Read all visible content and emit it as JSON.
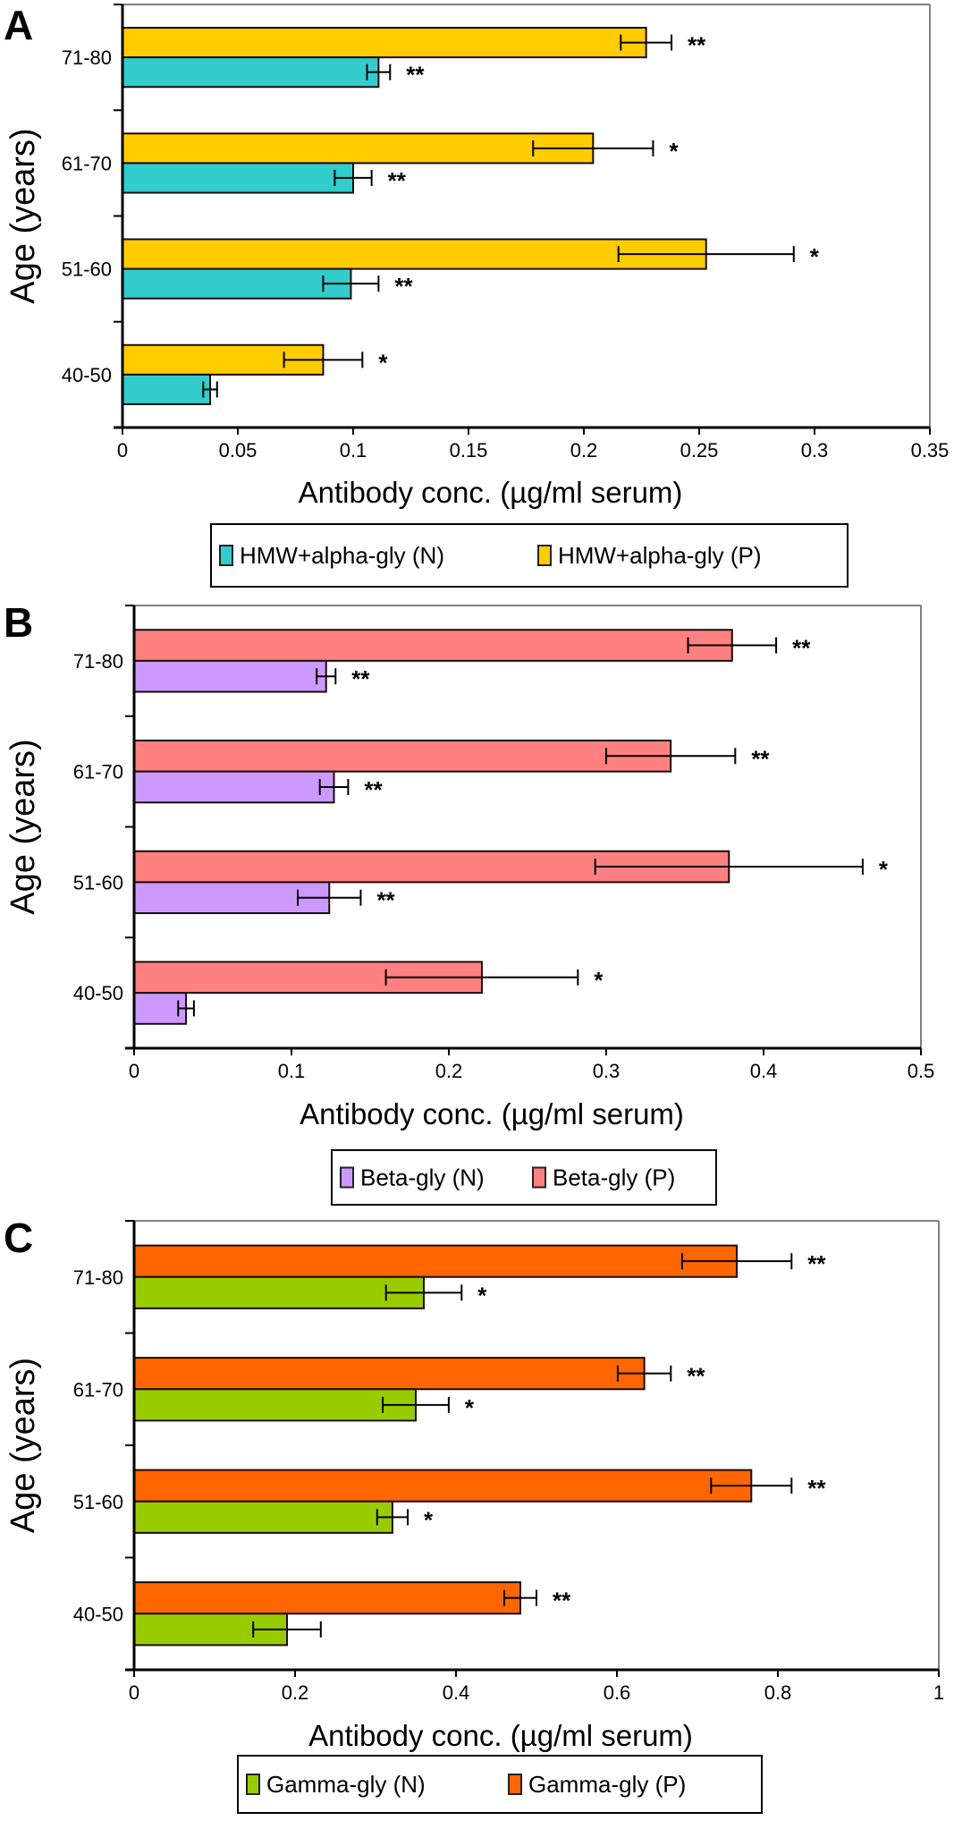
{
  "chart_data": [
    {
      "panel": "A",
      "type": "bar",
      "orientation": "horizontal",
      "xlabel": "Antibody conc. (µg/ml serum)",
      "ylabel": "Age (years)",
      "xlim": [
        0,
        0.35
      ],
      "xticks": [
        "0",
        "0.05",
        "0.1",
        "0.15",
        "0.2",
        "0.25",
        "0.3",
        "0.35"
      ],
      "xtick_values": [
        0,
        0.05,
        0.1,
        0.15,
        0.2,
        0.25,
        0.3,
        0.35
      ],
      "categories": [
        "71-80",
        "61-70",
        "51-60",
        "40-50"
      ],
      "grid": false,
      "legend_position": "bottom",
      "series": [
        {
          "name": "HMW+alpha-gly (P)",
          "color": "#FFCC00",
          "values": [
            0.227,
            0.204,
            0.253,
            0.087
          ],
          "errors": [
            0.011,
            0.026,
            0.038,
            0.017
          ],
          "significance": [
            "**",
            "*",
            "*",
            "*"
          ]
        },
        {
          "name": "HMW+alpha-gly (N)",
          "color": "#33CCCC",
          "values": [
            0.111,
            0.1,
            0.099,
            0.038
          ],
          "errors": [
            0.005,
            0.008,
            0.012,
            0.003
          ],
          "significance": [
            "**",
            "**",
            "**",
            ""
          ]
        }
      ],
      "legend": [
        "HMW+alpha-gly (N)",
        "HMW+alpha-gly (P)"
      ]
    },
    {
      "panel": "B",
      "type": "bar",
      "orientation": "horizontal",
      "xlabel": "Antibody conc. (µg/ml serum)",
      "ylabel": "Age (years)",
      "xlim": [
        0,
        0.5
      ],
      "xticks": [
        "0",
        "0.1",
        "0.2",
        "0.3",
        "0.4",
        "0.5"
      ],
      "xtick_values": [
        0,
        0.1,
        0.2,
        0.3,
        0.4,
        0.5
      ],
      "categories": [
        "71-80",
        "61-70",
        "51-60",
        "40-50"
      ],
      "grid": false,
      "legend_position": "bottom",
      "series": [
        {
          "name": "Beta-gly (P)",
          "color": "#FF8080",
          "values": [
            0.38,
            0.341,
            0.378,
            0.221
          ],
          "errors": [
            0.028,
            0.041,
            0.085,
            0.061
          ],
          "significance": [
            "**",
            "**",
            "*",
            "*"
          ]
        },
        {
          "name": "Beta-gly (N)",
          "color": "#CC99FF",
          "values": [
            0.122,
            0.127,
            0.124,
            0.033
          ],
          "errors": [
            0.006,
            0.009,
            0.02,
            0.005
          ],
          "significance": [
            "**",
            "**",
            "**",
            ""
          ]
        }
      ],
      "legend": [
        "Beta-gly (N)",
        "Beta-gly (P)"
      ]
    },
    {
      "panel": "C",
      "type": "bar",
      "orientation": "horizontal",
      "xlabel": "Antibody conc. (µg/ml serum)",
      "ylabel": "Age (years)",
      "xlim": [
        0,
        1
      ],
      "xticks": [
        "0",
        "0.2",
        "0.4",
        "0.6",
        "0.8",
        "1"
      ],
      "xtick_values": [
        0,
        0.2,
        0.4,
        0.6,
        0.8,
        1
      ],
      "categories": [
        "71-80",
        "61-70",
        "51-60",
        "40-50"
      ],
      "grid": false,
      "legend_position": "bottom",
      "series": [
        {
          "name": "Gamma-gly (P)",
          "color": "#FF6600",
          "values": [
            0.749,
            0.634,
            0.767,
            0.48
          ],
          "errors": [
            0.068,
            0.033,
            0.05,
            0.02
          ],
          "significance": [
            "**",
            "**",
            "**",
            "**"
          ]
        },
        {
          "name": "Gamma-gly (N)",
          "color": "#99CC00",
          "values": [
            0.36,
            0.35,
            0.321,
            0.19
          ],
          "errors": [
            0.047,
            0.041,
            0.019,
            0.042
          ],
          "significance": [
            "*",
            "*",
            "*",
            ""
          ]
        }
      ],
      "legend": [
        "Gamma-gly (N)",
        "Gamma-gly (P)"
      ]
    }
  ]
}
